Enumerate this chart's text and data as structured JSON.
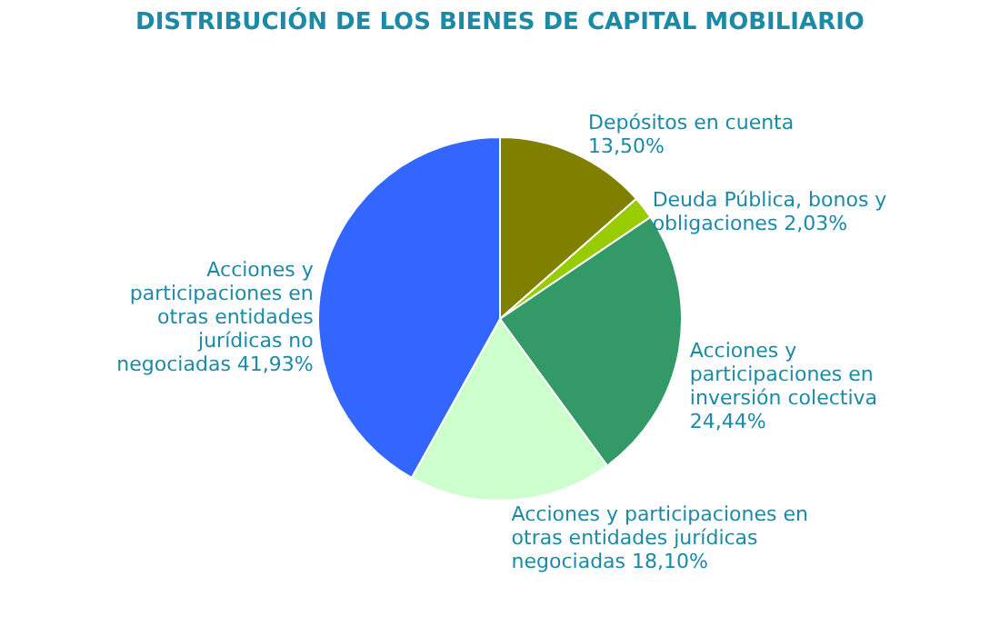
{
  "chart_data": {
    "type": "pie",
    "title": "DISTRIBUCIÓN DE LOS BIENES DE CAPITAL MOBILIARIO",
    "categories": [
      "Depósitos en cuenta",
      "Deuda Pública, bonos y obligaciones",
      "Acciones y participaciones en inversión colectiva",
      "Acciones y participaciones en otras entidades jurídicas negociadas",
      "Acciones y participaciones en otras entidades jurídicas no negociadas"
    ],
    "values": [
      13.5,
      2.03,
      24.44,
      18.1,
      41.93
    ],
    "colors": [
      "#808000",
      "#99cc00",
      "#339966",
      "#ccffcc",
      "#3366ff"
    ],
    "value_labels": [
      "13,50%",
      "2,03%",
      "24,44%",
      "18,10%",
      "41,93%"
    ],
    "legend": false
  }
}
